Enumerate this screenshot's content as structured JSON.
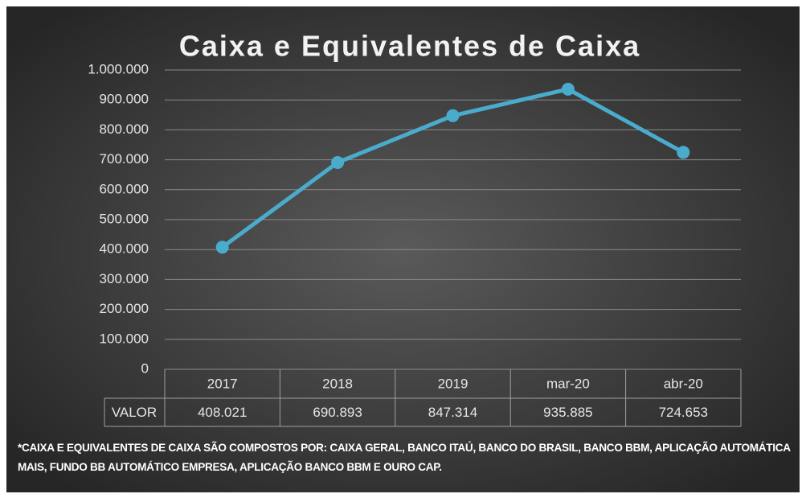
{
  "chart_data": {
    "type": "line",
    "title": "Caixa e Equivalentes de Caixa",
    "categories": [
      "2017",
      "2018",
      "2019",
      "mar-20",
      "abr-20"
    ],
    "series": [
      {
        "name": "VALOR",
        "color": "#4aaccd",
        "values": [
          408021,
          690893,
          847314,
          935885,
          724653
        ],
        "value_labels": [
          "408.021",
          "690.893",
          "847.314",
          "935.885",
          "724.653"
        ]
      }
    ],
    "ylim": [
      0,
      1000000
    ],
    "yticks": [
      0,
      {
        "value": 100000,
        "label": "100.000"
      },
      {
        "value": 200000,
        "label": "200.000"
      },
      {
        "value": 300000,
        "label": "300.000"
      },
      {
        "value": 400000,
        "label": "400.000"
      },
      {
        "value": 500000,
        "label": "500.000"
      },
      {
        "value": 600000,
        "label": "600.000"
      },
      {
        "value": 700000,
        "label": "700.000"
      },
      {
        "value": 800000,
        "label": "800.000"
      },
      {
        "value": 900000,
        "label": "900.000"
      },
      {
        "value": 1000000,
        "label": "1.000.000"
      }
    ],
    "grid": true,
    "annotation": "*CAIXA E EQUIVALENTES DE CAIXA SÃO COMPOSTOS POR: CAIXA GERAL, BANCO ITAÚ, BANCO DO BRASIL, BANCO BBM, APLICAÇÃO AUTOMÁTICA MAIS, FUNDO BB AUTOMÁTICO EMPRESA, APLICAÇÃO BANCO BBM E OURO CAP."
  }
}
